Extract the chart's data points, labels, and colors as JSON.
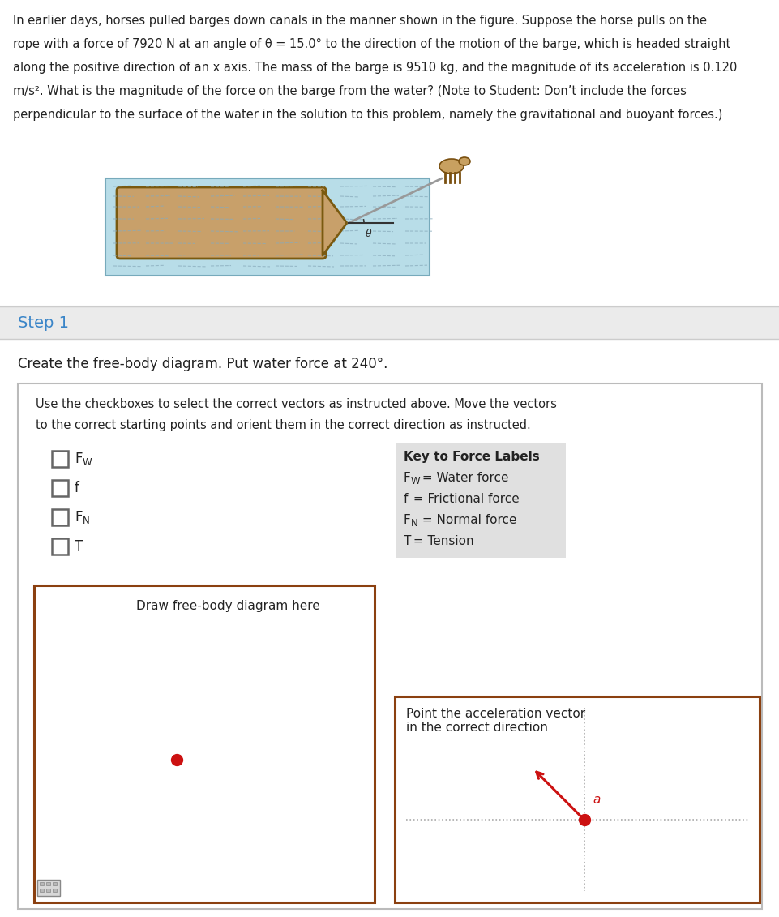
{
  "bg_color": "#ffffff",
  "problem_lines": [
    "In earlier days, horses pulled barges down canals in the manner shown in the figure. Suppose the horse pulls on the",
    "rope with a force of 7920 N at an angle of θ = 15.0° to the direction of the motion of the barge, which is headed straight",
    "along the positive direction of an x axis. The mass of the barge is 9510 kg, and the magnitude of its acceleration is 0.120",
    "m/s². What is the magnitude of the force on the barge from the water? (Note to Student: Don’t include the forces",
    "perpendicular to the surface of the water in the solution to this problem, namely the gravitational and buoyant forces.)"
  ],
  "step1_label": "Step 1",
  "step1_color": "#3a85c8",
  "step1_bg": "#ebebeb",
  "instruction_text": "Create the free-body diagram. Put water force at 240°.",
  "draw_box_label": "Draw free-body diagram here",
  "accel_box_label": "Point the acceleration vector\nin the correct direction",
  "border_color": "#8B4010",
  "dot_color": "#cc1111",
  "arrow_color": "#cc1111",
  "dotted_line_color": "#aaaaaa",
  "water_color_light": "#b8dde8",
  "water_color_dark": "#88bbd0",
  "barge_fill": "#c8a06a",
  "barge_edge": "#7a5a10",
  "key_bg": "#e0e0e0",
  "outer_box_border": "#bbbbbb",
  "section_border": "#cccccc",
  "text_color": "#222222",
  "checkbox_border": "#666666",
  "rope_color": "#999999",
  "problem_fontsize": 10.5,
  "step1_fontsize": 14,
  "instruction_fontsize": 12,
  "body_fontsize": 11,
  "key_fontsize": 11
}
